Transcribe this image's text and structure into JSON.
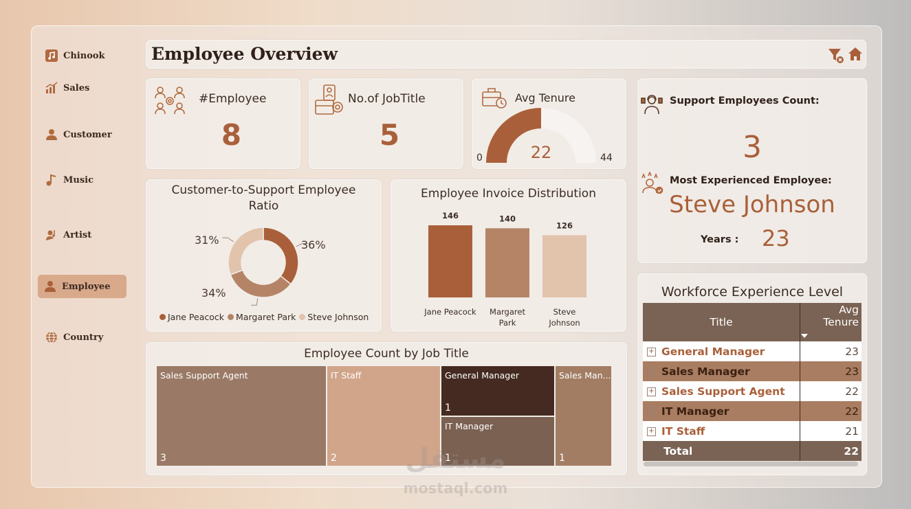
{
  "sidebar": {
    "items": [
      {
        "label": "Chinook",
        "icon": "music-note-square-icon"
      },
      {
        "label": "Sales",
        "icon": "bar-chart-icon"
      },
      {
        "label": "Customer",
        "icon": "person-icon"
      },
      {
        "label": "Music",
        "icon": "music-note-icon"
      },
      {
        "label": "Artist",
        "icon": "artist-icon"
      },
      {
        "label": "Employee",
        "icon": "person-icon",
        "active": true
      },
      {
        "label": "Country",
        "icon": "globe-icon"
      }
    ]
  },
  "header": {
    "title": "Employee Overview"
  },
  "kpis": {
    "employee": {
      "label": "#Employee",
      "value": "8"
    },
    "jobtitle": {
      "label": "No.of JobTitle",
      "value": "5"
    },
    "tenure": {
      "label": "Avg Tenure",
      "value": "22",
      "min": "0",
      "max": "44",
      "fraction": 0.5
    }
  },
  "support": {
    "count_label": "Support Employees Count:",
    "count_value": "3",
    "most_exp_label": "Most Experienced Employee:",
    "most_exp_name": "Steve Johnson",
    "years_label": "Years :",
    "years_value": "23"
  },
  "donut": {
    "title_line1": "Customer-to-Support Employee",
    "title_line2": "Ratio",
    "labels": [
      "36%",
      "34%",
      "31%"
    ]
  },
  "invoice": {
    "title": "Employee Invoice Distribution"
  },
  "treemap": {
    "title": "Employee Count by Job Title",
    "cells": [
      {
        "name": "Sales Support Agent",
        "count": "3"
      },
      {
        "name": "IT Staff",
        "count": "2"
      },
      {
        "name": "General Manager",
        "count": "1"
      },
      {
        "name": "IT Manager",
        "count": "1"
      },
      {
        "name": "Sales Man...",
        "count": "1"
      }
    ]
  },
  "workforce": {
    "title": "Workforce Experience Level",
    "col_title": "Title",
    "col_avg": "Avg Tenure",
    "rows": [
      {
        "title": "General Manager",
        "value": "23"
      },
      {
        "title": "Sales Manager",
        "value": "23"
      },
      {
        "title": "Sales Support Agent",
        "value": "22"
      },
      {
        "title": "IT Manager",
        "value": "22"
      },
      {
        "title": "IT Staff",
        "value": "21"
      }
    ],
    "total_label": "Total",
    "total_value": "22"
  },
  "watermark": {
    "arabic": "مستقل",
    "latin": "mostaql.com"
  },
  "colors": {
    "accent": "#a9603a",
    "dark": "#7a6354",
    "medium": "#b58467",
    "light": "#e2c3ac"
  },
  "chart_data": [
    {
      "type": "pie",
      "title": "Customer-to-Support Employee Ratio",
      "series": [
        {
          "values": [
            36,
            34,
            31
          ]
        }
      ],
      "categories": [
        "Jane Peacock",
        "Margaret Park",
        "Steve Johnson"
      ],
      "colors": [
        "#a9603a",
        "#b58467",
        "#e2c3ac"
      ],
      "legend": "bottom"
    },
    {
      "type": "bar",
      "title": "Employee Invoice Distribution",
      "categories": [
        "Jane Peacock",
        "Margaret Park",
        "Steve Johnson"
      ],
      "values": [
        146,
        140,
        126
      ],
      "colors": [
        "#a9603a",
        "#b58467",
        "#e2c3ac"
      ],
      "ylim": [
        0,
        146
      ]
    }
  ]
}
